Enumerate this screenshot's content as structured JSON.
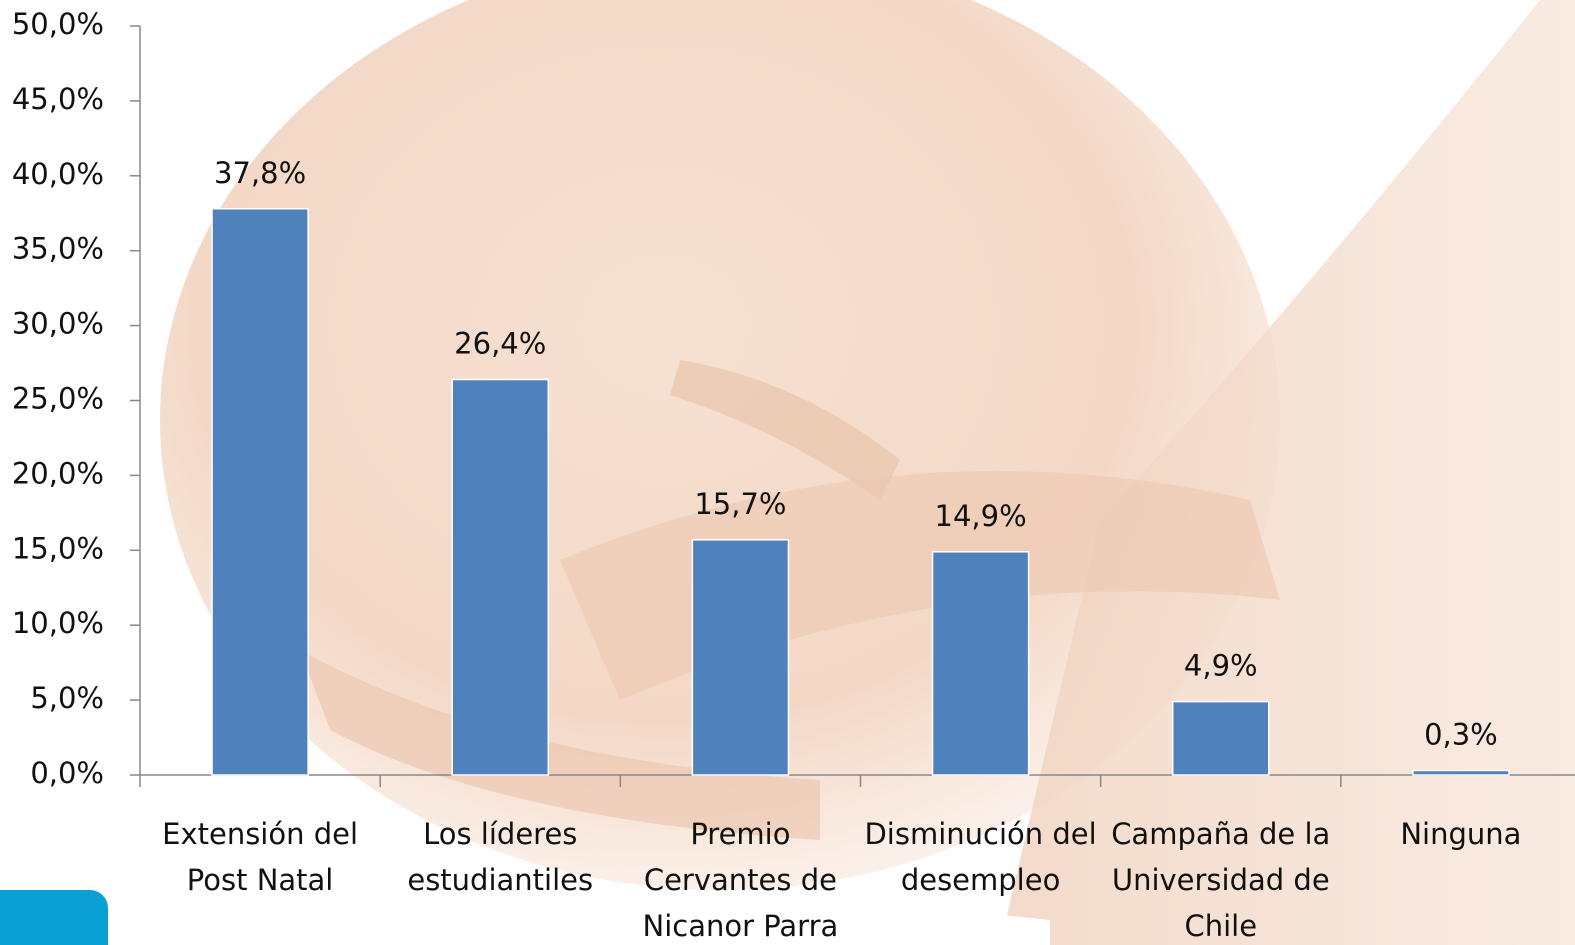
{
  "chart_data": {
    "type": "bar",
    "categories": [
      "Extensión del Post Natal",
      "Los líderes estudiantiles",
      "Premio Cervantes de Nicanor Parra",
      "Disminución del desempleo",
      "Campaña de la Universidad de Chile",
      "Ninguna"
    ],
    "values": [
      37.8,
      26.4,
      15.7,
      14.9,
      4.9,
      0.3
    ],
    "value_labels": [
      "37,8%",
      "26,4%",
      "15,7%",
      "14,9%",
      "4,9%",
      "0,3%"
    ],
    "color": "#4f81bd",
    "ylim": [
      0,
      50
    ],
    "yticks": [
      {
        "value": 0,
        "label": "0,0%"
      },
      {
        "value": 5,
        "label": "5,0%"
      },
      {
        "value": 10,
        "label": "10,0%"
      },
      {
        "value": 15,
        "label": "15,0%"
      },
      {
        "value": 20,
        "label": "20,0%"
      },
      {
        "value": 25,
        "label": "25,0%"
      },
      {
        "value": 30,
        "label": "30,0%"
      },
      {
        "value": 35,
        "label": "35,0%"
      },
      {
        "value": 40,
        "label": "40,0%"
      },
      {
        "value": 45,
        "label": "45,0%"
      },
      {
        "value": 50,
        "label": "50,0%"
      }
    ]
  }
}
